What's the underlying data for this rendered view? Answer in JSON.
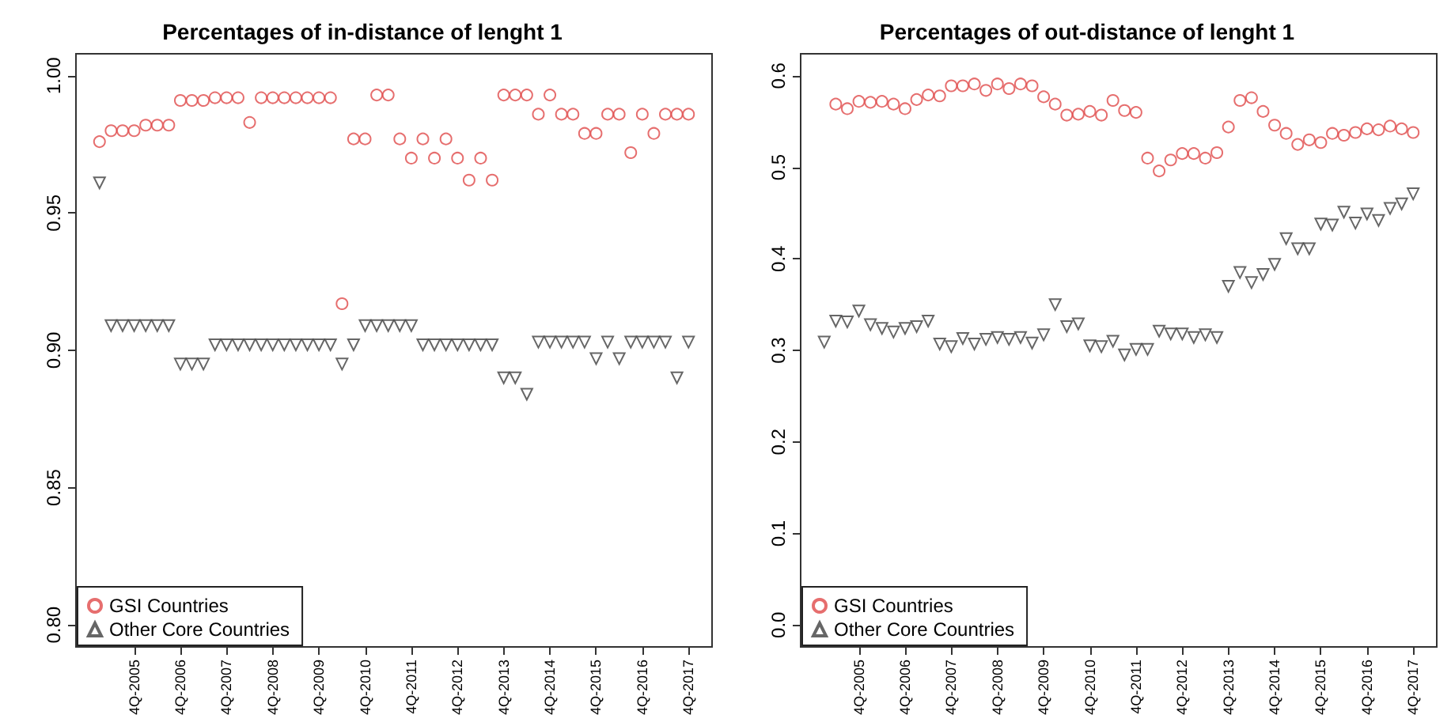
{
  "chart_data": [
    {
      "type": "scatter",
      "title": "Percentages of in-distance of lenght 1",
      "categories": [
        null,
        null,
        null,
        "4Q-2005",
        null,
        null,
        null,
        "4Q-2006",
        null,
        null,
        null,
        "4Q-2007",
        null,
        null,
        null,
        "4Q-2008",
        null,
        null,
        null,
        "4Q-2009",
        null,
        null,
        null,
        "4Q-2010",
        null,
        null,
        null,
        "4Q-2011",
        null,
        null,
        null,
        "4Q-2012",
        null,
        null,
        null,
        "4Q-2013",
        null,
        null,
        null,
        "4Q-2014",
        null,
        null,
        null,
        "4Q-2015",
        null,
        null,
        null,
        "4Q-2016",
        null,
        null,
        null,
        "4Q-2017"
      ],
      "series": [
        {
          "name": "GSI Countries",
          "color": "#e04a4a",
          "marker": "circle",
          "values": [
            0.976,
            0.98,
            0.98,
            0.98,
            0.982,
            0.982,
            0.982,
            0.991,
            0.991,
            0.991,
            0.992,
            0.992,
            0.992,
            0.983,
            0.992,
            0.992,
            0.992,
            0.992,
            0.992,
            0.992,
            0.992,
            0.917,
            0.977,
            0.977,
            0.993,
            0.993,
            0.977,
            0.97,
            0.977,
            0.97,
            0.977,
            0.97,
            0.962,
            0.97,
            0.962,
            0.993,
            0.993,
            0.993,
            0.986,
            0.993,
            0.986,
            0.986,
            0.979,
            0.979,
            0.986,
            0.986,
            0.972,
            0.986,
            0.979,
            0.986,
            0.986,
            0.986
          ]
        },
        {
          "name": "Other Core Countries",
          "color": "#404040",
          "marker": "triangle",
          "values": [
            0.961,
            0.909,
            0.909,
            0.909,
            0.909,
            0.909,
            0.909,
            0.895,
            0.895,
            0.895,
            0.902,
            0.902,
            0.902,
            0.902,
            0.902,
            0.902,
            0.902,
            0.902,
            0.902,
            0.902,
            0.902,
            0.895,
            0.902,
            0.909,
            0.909,
            0.909,
            0.909,
            0.909,
            0.902,
            0.902,
            0.902,
            0.902,
            0.902,
            0.902,
            0.902,
            0.89,
            0.89,
            0.884,
            0.903,
            0.903,
            0.903,
            0.903,
            0.903,
            0.897,
            0.903,
            0.897,
            0.903,
            0.903,
            0.903,
            0.903,
            0.89,
            0.903
          ]
        }
      ],
      "ylim": [
        0.792,
        1.008
      ],
      "yticks": [
        {
          "value": 0.8,
          "label": "0.80"
        },
        {
          "value": 0.85,
          "label": "0.85"
        },
        {
          "value": 0.9,
          "label": "0.90"
        },
        {
          "value": 0.95,
          "label": "0.95"
        },
        {
          "value": 1,
          "label": "1.00"
        }
      ],
      "legend": "bottom left"
    },
    {
      "type": "scatter",
      "title": "Percentages of out-distance of lenght 1",
      "categories": [
        null,
        null,
        null,
        "4Q-2005",
        null,
        null,
        null,
        "4Q-2006",
        null,
        null,
        null,
        "4Q-2007",
        null,
        null,
        null,
        "4Q-2008",
        null,
        null,
        null,
        "4Q-2009",
        null,
        null,
        null,
        "4Q-2010",
        null,
        null,
        null,
        "4Q-2011",
        null,
        null,
        null,
        "4Q-2012",
        null,
        null,
        null,
        "4Q-2013",
        null,
        null,
        null,
        "4Q-2014",
        null,
        null,
        null,
        "4Q-2015",
        null,
        null,
        null,
        "4Q-2016",
        null,
        null,
        null,
        "4Q-2017"
      ],
      "series": [
        {
          "name": "GSI Countries",
          "color": "#e04a4a",
          "marker": "circle",
          "values": [
            null,
            0.569,
            0.564,
            0.572,
            0.571,
            0.572,
            0.569,
            0.564,
            0.574,
            0.579,
            0.578,
            0.589,
            0.589,
            0.591,
            0.584,
            0.591,
            0.586,
            0.591,
            0.589,
            0.577,
            0.569,
            0.557,
            0.558,
            0.561,
            0.557,
            0.573,
            0.562,
            0.56,
            0.51,
            0.496,
            0.508,
            0.515,
            0.515,
            0.51,
            0.516,
            0.544,
            0.573,
            0.576,
            0.561,
            0.546,
            0.537,
            0.525,
            0.53,
            0.527,
            0.537,
            0.535,
            0.538,
            0.542,
            0.541,
            0.545,
            0.542,
            0.538
          ]
        },
        {
          "name": "Other Core Countries",
          "color": "#404040",
          "marker": "triangle",
          "values": [
            0.309,
            0.332,
            0.331,
            0.343,
            0.328,
            0.324,
            0.32,
            0.324,
            0.326,
            0.332,
            0.307,
            0.304,
            0.313,
            0.307,
            0.312,
            0.314,
            0.312,
            0.314,
            0.308,
            0.317,
            0.35,
            0.326,
            0.329,
            0.305,
            0.304,
            0.31,
            0.295,
            0.301,
            0.301,
            0.321,
            0.318,
            0.318,
            0.314,
            0.317,
            0.314,
            0.37,
            0.385,
            0.374,
            0.383,
            0.394,
            0.422,
            0.411,
            0.411,
            0.438,
            0.437,
            0.451,
            0.439,
            0.449,
            0.442,
            0.455,
            0.46,
            0.471
          ]
        }
      ],
      "ylim": [
        -0.024,
        0.624
      ],
      "yticks": [
        {
          "value": 0,
          "label": "0.0"
        },
        0.1,
        0.2,
        0.3,
        0.4,
        0.5,
        0.6
      ],
      "legend": "bottom left"
    }
  ]
}
